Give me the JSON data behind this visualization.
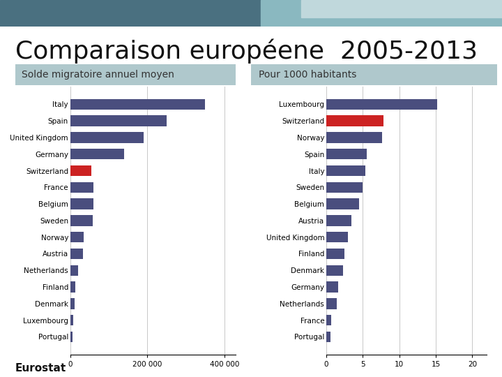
{
  "title": "Comparaison européene  2005-2013",
  "title_fontsize": 26,
  "subtitle_left": "Solde migratoire annuel moyen",
  "subtitle_right": "Pour 1000 habitants",
  "subtitle_fontsize": 10,
  "eurostat_label": "Eurostat",
  "background_color": "#ffffff",
  "header_bg_color": "#afc8cc",
  "bar_color_default": "#4a4e7e",
  "bar_color_highlight": "#cc2222",
  "left_countries": [
    "Italy",
    "Spain",
    "United Kingdom",
    "Germany",
    "Switzerland",
    "France",
    "Belgium",
    "Sweden",
    "Norway",
    "Austria",
    "Netherlands",
    "Finland",
    "Denmark",
    "Luxembourg",
    "Portugal"
  ],
  "left_values": [
    350000,
    250000,
    190000,
    140000,
    55000,
    60000,
    60000,
    58000,
    35000,
    33000,
    20000,
    13000,
    11000,
    7000,
    5000
  ],
  "left_highlight": [
    "Switzerland"
  ],
  "left_xlim": [
    0,
    430000
  ],
  "left_xticks": [
    0,
    200000,
    400000
  ],
  "left_xticklabels": [
    "0",
    "200 000",
    "400 000"
  ],
  "right_countries": [
    "Luxembourg",
    "Switzerland",
    "Norway",
    "Spain",
    "Italy",
    "Sweden",
    "Belgium",
    "Austria",
    "United Kingdom",
    "Finland",
    "Denmark",
    "Germany",
    "Netherlands",
    "France",
    "Portugal"
  ],
  "right_values": [
    15.2,
    7.8,
    7.6,
    5.5,
    5.3,
    5.0,
    4.5,
    3.4,
    3.0,
    2.5,
    2.3,
    1.6,
    1.4,
    0.7,
    0.6
  ],
  "right_highlight": [
    "Switzerland"
  ],
  "right_xlim": [
    0,
    22
  ],
  "right_xticks": [
    0,
    5,
    10,
    15,
    20
  ],
  "right_xticklabels": [
    "0",
    "5",
    "10",
    "15",
    "20"
  ],
  "deco_bar1_color": "#4a7080",
  "deco_bar2_color": "#8ab8c0",
  "deco_bar3_color": "#c0d8dc"
}
